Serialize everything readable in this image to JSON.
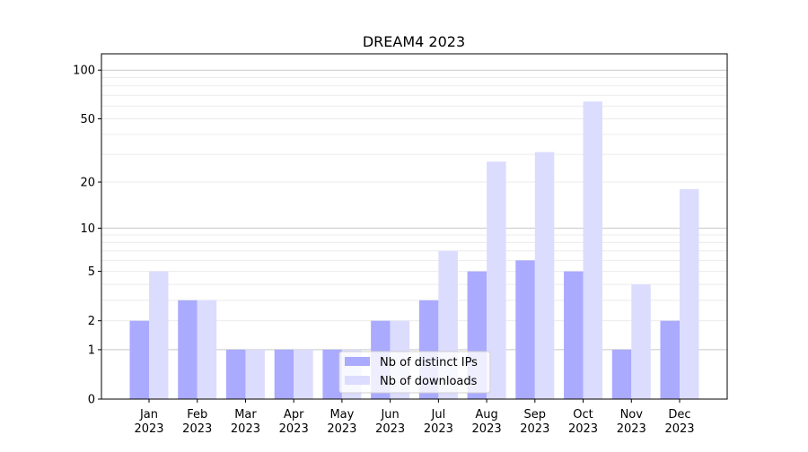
{
  "chart_data": {
    "type": "bar",
    "title": "DREAM4 2023",
    "xlabel": "",
    "ylabel": "",
    "yscale": "log1p",
    "ylim": [
      0,
      126
    ],
    "yticks": [
      0,
      1,
      2,
      5,
      10,
      20,
      50,
      100
    ],
    "ytick_labels": [
      "0",
      "1",
      "2",
      "5",
      "10",
      "20",
      "50",
      "100"
    ],
    "grid": true,
    "legend_placement": "bottom-center",
    "categories": [
      "Jan\n2023",
      "Feb\n2023",
      "Mar\n2023",
      "Apr\n2023",
      "May\n2023",
      "Jun\n2023",
      "Jul\n2023",
      "Aug\n2023",
      "Sep\n2023",
      "Oct\n2023",
      "Nov\n2023",
      "Dec\n2023"
    ],
    "category_lines": [
      [
        "Jan",
        "2023"
      ],
      [
        "Feb",
        "2023"
      ],
      [
        "Mar",
        "2023"
      ],
      [
        "Apr",
        "2023"
      ],
      [
        "May",
        "2023"
      ],
      [
        "Jun",
        "2023"
      ],
      [
        "Jul",
        "2023"
      ],
      [
        "Aug",
        "2023"
      ],
      [
        "Sep",
        "2023"
      ],
      [
        "Oct",
        "2023"
      ],
      [
        "Nov",
        "2023"
      ],
      [
        "Dec",
        "2023"
      ]
    ],
    "series": [
      {
        "name": "Nb of distinct IPs",
        "color": "#aaaaff",
        "values": [
          2,
          3,
          1,
          1,
          1,
          2,
          3,
          5,
          6,
          5,
          1,
          2
        ]
      },
      {
        "name": "Nb of downloads",
        "color": "#dcdcff",
        "values": [
          5,
          3,
          1,
          1,
          1,
          2,
          7,
          27,
          31,
          64,
          4,
          18
        ]
      }
    ]
  }
}
